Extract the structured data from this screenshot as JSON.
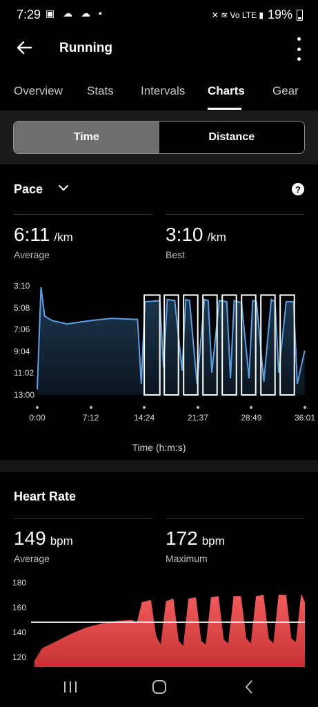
{
  "status": {
    "time": "7:29",
    "battery": "19%",
    "left_icons": "▣ ☁ ☁ •",
    "right_icons": "✕ ≋ Vo LTE ▮"
  },
  "header": {
    "title": "Running"
  },
  "tabs": [
    "Overview",
    "Stats",
    "Intervals",
    "Charts",
    "Gear"
  ],
  "active_tab": "Charts",
  "segmented": {
    "time": "Time",
    "distance": "Distance",
    "selected": "Time"
  },
  "pace": {
    "title": "Pace",
    "help": "?",
    "average_value": "6:11",
    "average_unit": "/km",
    "average_label": "Average",
    "best_value": "3:10",
    "best_unit": "/km",
    "best_label": "Best",
    "x_title": "Time (h:m:s)"
  },
  "heart_rate": {
    "title": "Heart Rate",
    "average_value": "149",
    "average_unit": "bpm",
    "average_label": "Average",
    "max_value": "172",
    "max_unit": "bpm",
    "max_label": "Maximum"
  },
  "colors": {
    "pace_line": "#5aa0e6",
    "hr_fill": "#e84b4b",
    "background": "#000000",
    "interval_box": "#ffffff"
  },
  "chart_data": [
    {
      "type": "line",
      "title": "Pace",
      "xlabel": "Time (h:m:s)",
      "ylabel": "",
      "x_ticks": [
        "0:00",
        "7:12",
        "14:24",
        "21:37",
        "28:49",
        "36:01"
      ],
      "y_ticks": [
        "3:10",
        "5:08",
        "7:06",
        "9:04",
        "11:02",
        "13:00"
      ],
      "y_inverted": true,
      "x": [
        0,
        0.5,
        1,
        2,
        4,
        7.2,
        10,
        13.5,
        14.0,
        14.5,
        16.5,
        17.0,
        17.5,
        18.5,
        19.5,
        20.0,
        20.5,
        21.5,
        22.5,
        23.0,
        23.5,
        24.5,
        25.5,
        26.0,
        26.5,
        27.5,
        28.5,
        29.0,
        29.5,
        30.5,
        31.5,
        32.0,
        32.5,
        33.5,
        34.5,
        35.0,
        35.5,
        36.0
      ],
      "y": [
        12.5,
        3.3,
        5.9,
        6.3,
        6.6,
        6.3,
        6.1,
        6.2,
        12.0,
        4.6,
        4.5,
        10.5,
        4.4,
        4.5,
        10.8,
        4.4,
        4.5,
        12.0,
        4.4,
        4.5,
        11.0,
        4.5,
        4.6,
        11.5,
        4.5,
        4.7,
        11.5,
        4.5,
        4.6,
        11.8,
        4.4,
        4.6,
        11.0,
        4.6,
        4.6,
        12.0,
        10.5,
        9.0
      ],
      "interval_boxes": [
        [
          14.4,
          16.5
        ],
        [
          17.1,
          19.0
        ],
        [
          19.7,
          21.6
        ],
        [
          22.3,
          24.2
        ],
        [
          24.9,
          26.8
        ],
        [
          27.5,
          29.4
        ],
        [
          30.1,
          32.0
        ],
        [
          32.7,
          34.6
        ]
      ]
    },
    {
      "type": "area",
      "title": "Heart Rate",
      "y_ticks": [
        "180",
        "160",
        "140",
        "120"
      ],
      "ylim": [
        113,
        183
      ],
      "average_line": 149,
      "x": [
        0,
        1,
        3,
        5,
        7,
        9,
        11,
        13,
        13.6,
        14.3,
        15.5,
        16.2,
        16.8,
        17.5,
        18.5,
        19.2,
        19.8,
        20.5,
        21.5,
        22.2,
        22.8,
        23.5,
        24.5,
        25.2,
        25.8,
        26.5,
        27.5,
        28.2,
        28.8,
        29.5,
        30.5,
        31.2,
        31.8,
        32.5,
        33.5,
        34.2,
        34.8,
        35.5,
        36.0
      ],
      "y": [
        118,
        128,
        134,
        140,
        145,
        148,
        150,
        151,
        148,
        165,
        167,
        138,
        131,
        166,
        168,
        134,
        130,
        168,
        169,
        134,
        131,
        169,
        170,
        135,
        132,
        170,
        170,
        136,
        132,
        170,
        171,
        136,
        132,
        171,
        171,
        136,
        133,
        172,
        165
      ]
    }
  ]
}
